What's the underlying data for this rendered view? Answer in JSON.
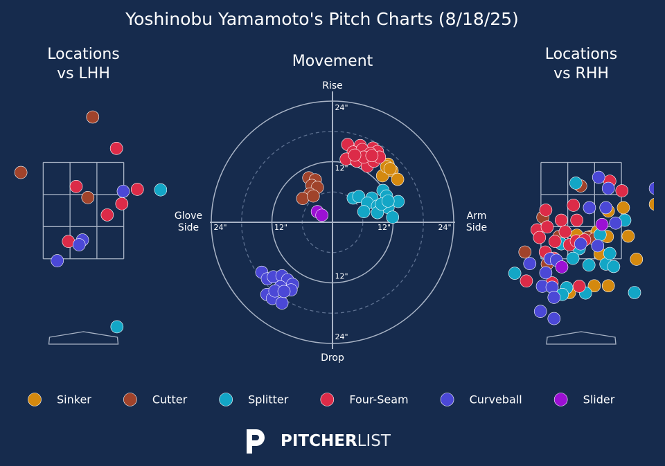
{
  "title": "Yoshinobu Yamamoto's Pitch Charts (8/18/25)",
  "footer": {
    "brand_bold": "PITCHER",
    "brand_light": "LIST"
  },
  "chart_data": [
    {
      "type": "location",
      "title_lines": [
        "Locations",
        "vs LHH"
      ],
      "xlim": [
        -1.72,
        1.72
      ],
      "ylim": [
        -0.6,
        5.0
      ],
      "zone": {
        "x": [
          -0.83,
          0.83
        ],
        "z": [
          1.5,
          3.5
        ]
      },
      "series": [
        {
          "name": "Cutter",
          "color": "#a0432b",
          "x": [
            0.19,
            -1.29,
            0.09
          ],
          "values": [
            4.44,
            3.29,
            2.77
          ]
        },
        {
          "name": "Four-Seam",
          "color": "#dc2b48",
          "x": [
            0.68,
            -0.15,
            1.11,
            0.79,
            0.49,
            -0.31
          ],
          "values": [
            3.79,
            3.0,
            2.94,
            2.64,
            2.41,
            1.86
          ]
        },
        {
          "name": "Curveball",
          "color": "#4b48d6",
          "x": [
            0.82,
            -0.02,
            -0.09,
            -0.54
          ],
          "values": [
            2.9,
            1.89,
            1.79,
            1.46
          ]
        },
        {
          "name": "Splitter",
          "color": "#13a6c6",
          "x": [
            0.69,
            1.59
          ],
          "values": [
            0.09,
            2.93
          ]
        }
      ]
    },
    {
      "type": "movement",
      "title_lines": [
        "Movement"
      ],
      "top_label": "Rise",
      "bottom_label": "Drop",
      "left_label_lines": [
        "Glove",
        "Side"
      ],
      "right_label_lines": [
        "Arm",
        "Side"
      ],
      "xlim": [
        -24,
        24
      ],
      "ylim": [
        -24,
        24
      ],
      "minor_rings": [
        6,
        18
      ],
      "xticks": [
        {
          "value": -24,
          "label": "24\""
        },
        {
          "value": -12,
          "label": "12\""
        },
        {
          "value": 12,
          "label": "12\""
        },
        {
          "value": 24,
          "label": "24\""
        }
      ],
      "yticks": [
        {
          "value": -24,
          "label": "24\""
        },
        {
          "value": -12,
          "label": "12\""
        },
        {
          "value": 12,
          "label": "12\""
        },
        {
          "value": 24,
          "label": "24\""
        }
      ],
      "series": [
        {
          "name": "Sinker",
          "color": "#d4890f",
          "x": [
            11.0,
            11.8,
            12.9,
            9.9,
            10.7,
            11.4
          ],
          "values": [
            11.5,
            10.2,
            8.5,
            9.2,
            11.0,
            10.6
          ]
        },
        {
          "name": "Cutter",
          "color": "#a0432b",
          "x": [
            -4.7,
            -3.4,
            -4.1,
            -3.0,
            -4.5,
            -5.9,
            -3.8
          ],
          "values": [
            8.8,
            8.4,
            7.3,
            6.9,
            5.6,
            4.7,
            5.2
          ]
        },
        {
          "name": "Splitter",
          "color": "#13a6c6",
          "x": [
            4.1,
            5.2,
            7.8,
            10.0,
            10.7,
            13.0,
            6.9,
            8.9,
            11.0,
            6.2,
            8.9,
            11.9,
            9.7,
            11.0
          ],
          "values": [
            4.8,
            5.1,
            4.8,
            6.3,
            5.2,
            4.1,
            3.8,
            3.2,
            2.9,
            2.1,
            1.9,
            1.0,
            3.6,
            4.2
          ]
        },
        {
          "name": "Four-Seam",
          "color": "#dc2b48",
          "x": [
            3.0,
            5.5,
            8.0,
            8.9,
            4.1,
            5.9,
            7.5,
            2.7,
            4.8,
            6.9,
            8.2,
            9.3,
            6.2,
            4.4,
            7.8
          ],
          "values": [
            15.4,
            15.2,
            14.7,
            14.0,
            13.9,
            14.4,
            13.6,
            12.5,
            12.1,
            11.1,
            12.1,
            12.9,
            12.9,
            13.3,
            13.2
          ]
        },
        {
          "name": "Curveball",
          "color": "#4b48d6",
          "x": [
            -14.0,
            -12.9,
            -11.7,
            -10.0,
            -8.9,
            -7.9,
            -10.3,
            -8.2,
            -13.0,
            -11.9,
            -10.0,
            -11.4,
            -9.6
          ],
          "values": [
            -9.9,
            -11.2,
            -10.8,
            -10.6,
            -11.4,
            -12.3,
            -12.8,
            -13.4,
            -14.3,
            -15.1,
            -16.0,
            -13.6,
            -13.7
          ]
        },
        {
          "name": "Slider",
          "color": "#9b10d4",
          "x": [
            -3.0,
            -2.1
          ],
          "values": [
            2.1,
            1.4
          ]
        }
      ]
    },
    {
      "type": "location",
      "title_lines": [
        "Locations",
        "vs RHH"
      ],
      "xlim": [
        -1.75,
        1.5
      ],
      "ylim": [
        -0.6,
        5.0
      ],
      "zone": {
        "x": [
          -0.83,
          0.83
        ],
        "z": [
          1.5,
          3.5
        ]
      },
      "series": [
        {
          "name": "Sinker",
          "color": "#d4890f",
          "x": [
            0.87,
            0.97,
            1.14,
            0.56,
            0.27,
            -0.24,
            0.54,
            0.19,
            0.39,
            -0.09,
            0.56,
            1.53,
            0.33
          ],
          "values": [
            2.56,
            1.97,
            1.49,
            0.94,
            0.94,
            0.8,
            1.96,
            1.96,
            1.6,
            1.99,
            2.49,
            2.63,
            2.06
          ]
        },
        {
          "name": "Cutter",
          "color": "#a0432b",
          "x": [
            -0.01,
            -0.79,
            -1.16,
            -0.7,
            0.13,
            0.27,
            -0.46
          ],
          "values": [
            3.01,
            2.36,
            1.64,
            1.39,
            1.94,
            1.91,
            1.96
          ]
        },
        {
          "name": "Splitter",
          "color": "#13a6c6",
          "x": [
            -0.11,
            0.9,
            -0.41,
            -0.04,
            -0.17,
            0.16,
            0.51,
            0.67,
            0.59,
            -0.3,
            0.09,
            1.1,
            -0.39,
            -1.37,
            0.39
          ],
          "values": [
            3.07,
            2.3,
            1.81,
            1.71,
            1.51,
            1.37,
            1.39,
            1.34,
            1.61,
            0.9,
            0.79,
            0.8,
            0.76,
            1.2,
            2.0
          ]
        },
        {
          "name": "Four-Seam",
          "color": "#dc2b48",
          "x": [
            0.59,
            0.84,
            -0.73,
            -0.16,
            -0.41,
            -0.09,
            -0.91,
            -0.7,
            -0.86,
            -0.54,
            -0.33,
            -0.24,
            -0.1,
            -0.74,
            -0.56,
            -1.13,
            -0.6,
            -0.04,
            0.07
          ],
          "values": [
            3.11,
            2.91,
            2.51,
            2.61,
            2.3,
            2.3,
            2.1,
            2.16,
            1.94,
            1.86,
            2.06,
            1.79,
            1.87,
            1.64,
            1.51,
            1.04,
            1.0,
            0.93,
            1.89
          ]
        },
        {
          "name": "Curveball",
          "color": "#4b48d6",
          "x": [
            0.36,
            0.56,
            0.51,
            0.17,
            0.71,
            1.53,
            0.34,
            -0.64,
            -0.51,
            -1.06,
            -0.73,
            -0.8,
            -0.6,
            -0.56,
            -0.84,
            -0.56,
            -0.01
          ],
          "values": [
            3.19,
            2.96,
            2.56,
            2.56,
            2.24,
            2.96,
            1.77,
            1.5,
            1.47,
            1.4,
            1.21,
            0.93,
            0.91,
            0.7,
            0.41,
            0.26,
            1.81
          ]
        },
        {
          "name": "Slider",
          "color": "#9b10d4",
          "x": [
            0.43,
            -0.4
          ],
          "values": [
            2.21,
            1.33
          ]
        }
      ]
    }
  ]
}
